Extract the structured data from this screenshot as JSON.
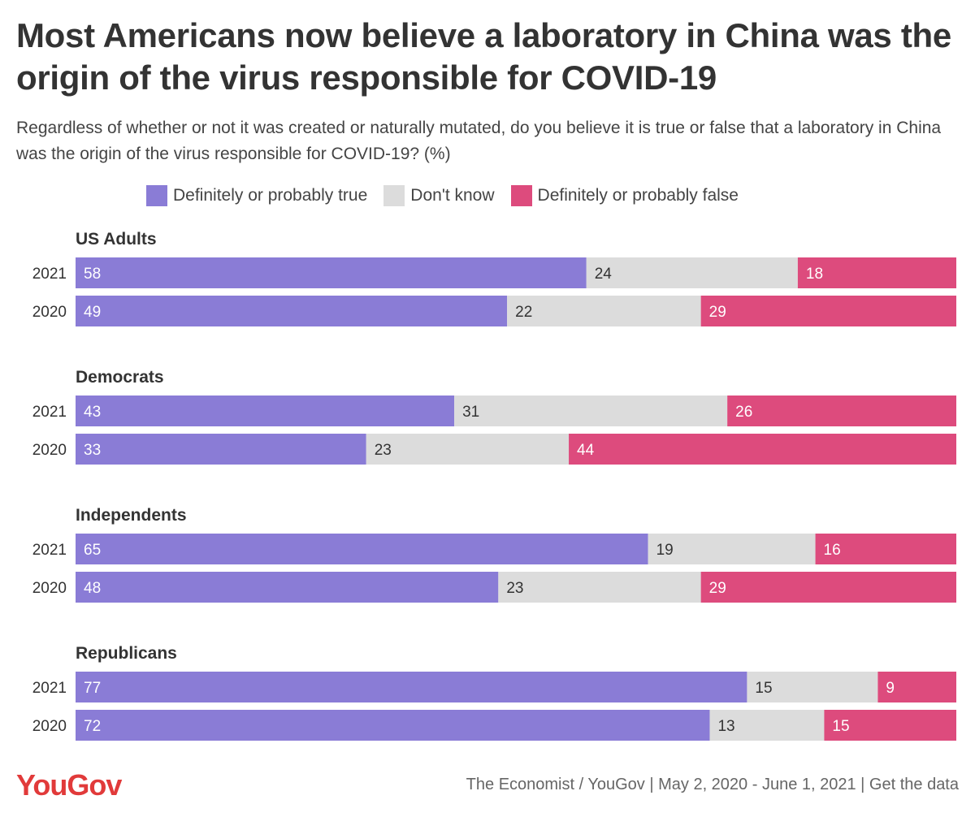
{
  "title": "Most Americans now believe a laboratory in China was the origin of the virus responsible for COVID-19",
  "subtitle": "Regardless of whether or not it was created or naturally mutated, do you believe it is true or false that a laboratory in China was the origin of the virus responsible for COVID-19? (%)",
  "legend": [
    {
      "label": "Definitely or probably true",
      "color": "#8a7cd6"
    },
    {
      "label": "Don't know",
      "color": "#dcdcdc"
    },
    {
      "label": "Definitely or probably false",
      "color": "#dd4b7d"
    }
  ],
  "footer": {
    "logo": "YouGov",
    "source": "The Economist / YouGov | May 2, 2020 - June 1, 2021 | Get the data"
  },
  "chart_data": {
    "type": "bar",
    "stacked": true,
    "orientation": "horizontal",
    "unit": "%",
    "series": [
      {
        "name": "Definitely or probably true",
        "color": "#8a7cd6"
      },
      {
        "name": "Don't know",
        "color": "#dcdcdc"
      },
      {
        "name": "Definitely or probably false",
        "color": "#dd4b7d"
      }
    ],
    "groups": [
      {
        "name": "US Adults",
        "rows": [
          {
            "label": "2021",
            "values": [
              58,
              24,
              18
            ]
          },
          {
            "label": "2020",
            "values": [
              49,
              22,
              29
            ]
          }
        ]
      },
      {
        "name": "Democrats",
        "rows": [
          {
            "label": "2021",
            "values": [
              43,
              31,
              26
            ]
          },
          {
            "label": "2020",
            "values": [
              33,
              23,
              44
            ]
          }
        ]
      },
      {
        "name": "Independents",
        "rows": [
          {
            "label": "2021",
            "values": [
              65,
              19,
              16
            ]
          },
          {
            "label": "2020",
            "values": [
              48,
              23,
              29
            ]
          }
        ]
      },
      {
        "name": "Republicans",
        "rows": [
          {
            "label": "2021",
            "values": [
              77,
              15,
              9
            ]
          },
          {
            "label": "2020",
            "values": [
              72,
              13,
              15
            ]
          }
        ]
      }
    ]
  }
}
